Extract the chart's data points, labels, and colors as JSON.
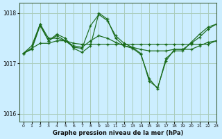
{
  "background_color": "#cceeff",
  "grid_color": "#aaccbb",
  "line_color": "#1a6b1a",
  "title": "Graphe pression niveau de la mer (hPa)",
  "xlim": [
    -0.5,
    23
  ],
  "ylim": [
    1015.85,
    1018.2
  ],
  "yticks": [
    1016,
    1017,
    1018
  ],
  "xticks": [
    0,
    1,
    2,
    3,
    4,
    5,
    6,
    7,
    8,
    9,
    10,
    11,
    12,
    13,
    14,
    15,
    16,
    17,
    18,
    19,
    20,
    21,
    22,
    23
  ],
  "series": [
    {
      "x": [
        0,
        1,
        2,
        3,
        4,
        5,
        6,
        7,
        8,
        9,
        10,
        11,
        12,
        13,
        14,
        15,
        16,
        17,
        18,
        19,
        20,
        21,
        22,
        23
      ],
      "y": [
        1017.2,
        1017.3,
        1017.4,
        1017.4,
        1017.45,
        1017.45,
        1017.4,
        1017.38,
        1017.38,
        1017.38,
        1017.38,
        1017.38,
        1017.38,
        1017.38,
        1017.38,
        1017.38,
        1017.38,
        1017.38,
        1017.38,
        1017.38,
        1017.38,
        1017.38,
        1017.38,
        1017.45
      ]
    },
    {
      "x": [
        0,
        1,
        2,
        3,
        4,
        5,
        6,
        7,
        8,
        9,
        10,
        11,
        12,
        13,
        14,
        15,
        16,
        17,
        18,
        19,
        20,
        21,
        22,
        23
      ],
      "y": [
        1017.2,
        1017.35,
        1017.78,
        1017.5,
        1017.5,
        1017.45,
        1017.35,
        1017.32,
        1017.45,
        1017.55,
        1017.5,
        1017.42,
        1017.35,
        1017.32,
        1017.28,
        1017.25,
        1017.25,
        1017.25,
        1017.28,
        1017.28,
        1017.28,
        1017.35,
        1017.42,
        1017.45
      ]
    },
    {
      "x": [
        0,
        1,
        2,
        3,
        4,
        5,
        6,
        7,
        8,
        9,
        10,
        11,
        12,
        13,
        14,
        15,
        16,
        17,
        18,
        19,
        20,
        21,
        22,
        23
      ],
      "y": [
        1017.2,
        1017.28,
        1017.75,
        1017.45,
        1017.55,
        1017.45,
        1017.32,
        1017.3,
        1017.75,
        1017.97,
        1017.85,
        1017.55,
        1017.4,
        1017.32,
        1017.2,
        1016.65,
        1016.52,
        1017.05,
        1017.28,
        1017.28,
        1017.4,
        1017.52,
        1017.68,
        1017.78
      ]
    },
    {
      "x": [
        0,
        1,
        2,
        3,
        4,
        5,
        6,
        7,
        8,
        9,
        10,
        11,
        12,
        13,
        14,
        15,
        16,
        17,
        18,
        19,
        20,
        21,
        22,
        23
      ],
      "y": [
        1017.2,
        1017.3,
        1017.78,
        1017.45,
        1017.58,
        1017.5,
        1017.3,
        1017.22,
        1017.35,
        1018.0,
        1017.88,
        1017.5,
        1017.35,
        1017.3,
        1017.18,
        1016.7,
        1016.5,
        1017.1,
        1017.25,
        1017.25,
        1017.42,
        1017.58,
        1017.72,
        1017.78
      ]
    }
  ]
}
